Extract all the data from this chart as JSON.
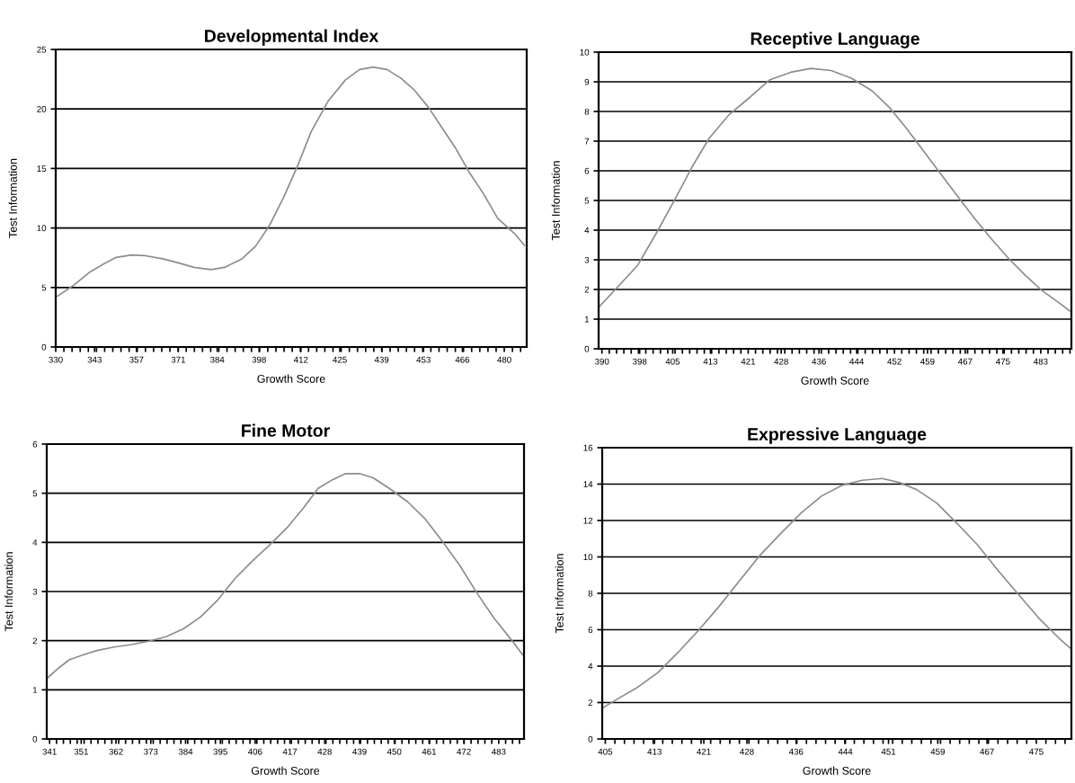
{
  "chart_data": [
    {
      "type": "line",
      "title": "Developmental Index",
      "xlabel": "Growth Score",
      "ylabel": "Test Information",
      "grid": "y",
      "xlim": [
        330,
        487.5
      ],
      "ylim": [
        0,
        25
      ],
      "yticks": [
        0,
        5,
        10,
        15,
        20,
        25
      ],
      "xticks": [
        330,
        343,
        357,
        371,
        384,
        398,
        412,
        425,
        439,
        453,
        466,
        480
      ],
      "series": [
        {
          "color": "#8c8c8c",
          "x": [
            330.6,
            335.8,
            341.5,
            346.1,
            350.2,
            355.4,
            360.0,
            365.8,
            371.5,
            376.2,
            381.9,
            386.5,
            392.3,
            396.9,
            401.5,
            406.2,
            410.8,
            415.4,
            421.2,
            426.9,
            431.6,
            436.2,
            440.8,
            445.4,
            450.0,
            454.7,
            459.3,
            463.9,
            468.5,
            473.1,
            477.8,
            483.5,
            486.7
          ],
          "values": [
            4.27,
            5.15,
            6.31,
            6.98,
            7.53,
            7.73,
            7.67,
            7.41,
            7.03,
            6.69,
            6.51,
            6.69,
            7.41,
            8.49,
            10.23,
            12.56,
            15.17,
            18.08,
            20.7,
            22.44,
            23.31,
            23.52,
            23.31,
            22.59,
            21.57,
            20.12,
            18.37,
            16.63,
            14.59,
            12.85,
            10.81,
            9.51,
            8.55
          ]
        }
      ]
    },
    {
      "type": "line",
      "title": "Receptive Language",
      "xlabel": "Growth Score",
      "ylabel": "Test Information",
      "grid": "y",
      "xlim": [
        389.3,
        489.5
      ],
      "ylim": [
        0,
        10
      ],
      "yticks": [
        0,
        1,
        2,
        3,
        4,
        5,
        6,
        7,
        8,
        9,
        10
      ],
      "xticks": [
        390,
        398,
        405,
        413,
        421,
        428,
        436,
        444,
        452,
        459,
        467,
        475,
        483
      ],
      "series": [
        {
          "color": "#8c8c8c",
          "x": [
            389.5,
            393.2,
            397.6,
            401.9,
            405.5,
            409.1,
            412.7,
            417.0,
            421.3,
            425.6,
            430.0,
            434.3,
            438.6,
            442.9,
            447.3,
            450.9,
            454.5,
            458.1,
            461.7,
            465.3,
            468.9,
            472.5,
            476.1,
            479.7,
            483.3,
            486.9,
            489.1
          ],
          "values": [
            1.43,
            2.06,
            2.82,
            4.0,
            5.05,
            6.13,
            7.09,
            7.9,
            8.47,
            9.07,
            9.32,
            9.45,
            9.38,
            9.12,
            8.69,
            8.14,
            7.44,
            6.68,
            5.92,
            5.16,
            4.41,
            3.71,
            3.06,
            2.48,
            1.96,
            1.55,
            1.28
          ]
        }
      ]
    },
    {
      "type": "line",
      "title": "Fine Motor",
      "xlabel": "Growth Score",
      "ylabel": "Test Information",
      "grid": "y",
      "xlim": [
        340.1,
        491
      ],
      "ylim": [
        0,
        6
      ],
      "yticks": [
        0,
        1,
        2,
        3,
        4,
        5,
        6
      ],
      "xticks": [
        341,
        351,
        362,
        373,
        384,
        395,
        406,
        417,
        428,
        439,
        450,
        461,
        472,
        483
      ],
      "series": [
        {
          "color": "#8c8c8c",
          "x": [
            340.3,
            344.0,
            347.2,
            351.6,
            356.0,
            361.4,
            366.9,
            372.3,
            377.8,
            383.3,
            388.7,
            394.2,
            399.7,
            405.1,
            410.6,
            416.1,
            421.5,
            425.9,
            430.3,
            434.6,
            439.0,
            443.4,
            448.8,
            454.3,
            459.7,
            465.2,
            470.7,
            476.1,
            481.6,
            487.1,
            490.6
          ],
          "values": [
            1.24,
            1.45,
            1.61,
            1.71,
            1.8,
            1.87,
            1.92,
            1.99,
            2.08,
            2.24,
            2.48,
            2.83,
            3.27,
            3.62,
            3.95,
            4.3,
            4.72,
            5.1,
            5.27,
            5.4,
            5.4,
            5.31,
            5.08,
            4.82,
            4.48,
            4.02,
            3.53,
            2.97,
            2.45,
            2.01,
            1.71
          ]
        }
      ]
    },
    {
      "type": "line",
      "title": "Expressive Language",
      "xlabel": "Growth Score",
      "ylabel": "Test Information",
      "grid": "y",
      "xlim": [
        404.5,
        480.7
      ],
      "ylim": [
        0,
        16
      ],
      "yticks": [
        0,
        2,
        4,
        6,
        8,
        10,
        12,
        14,
        16
      ],
      "xticks": [
        405,
        413,
        421,
        428,
        436,
        444,
        451,
        459,
        467,
        475
      ],
      "series": [
        {
          "color": "#8c8c8c",
          "x": [
            404.6,
            406.9,
            410.2,
            413.6,
            416.9,
            420.2,
            423.5,
            426.8,
            430.1,
            433.5,
            436.8,
            440.1,
            443.4,
            446.7,
            450.0,
            452.8,
            455.5,
            458.8,
            462.1,
            465.5,
            468.8,
            472.1,
            475.4,
            478.7,
            480.5
          ],
          "values": [
            1.71,
            2.18,
            2.83,
            3.66,
            4.78,
            5.99,
            7.29,
            8.69,
            10.08,
            11.29,
            12.41,
            13.34,
            13.93,
            14.21,
            14.31,
            14.08,
            13.71,
            12.97,
            11.85,
            10.64,
            9.25,
            7.94,
            6.64,
            5.53,
            5.0
          ]
        }
      ]
    }
  ]
}
